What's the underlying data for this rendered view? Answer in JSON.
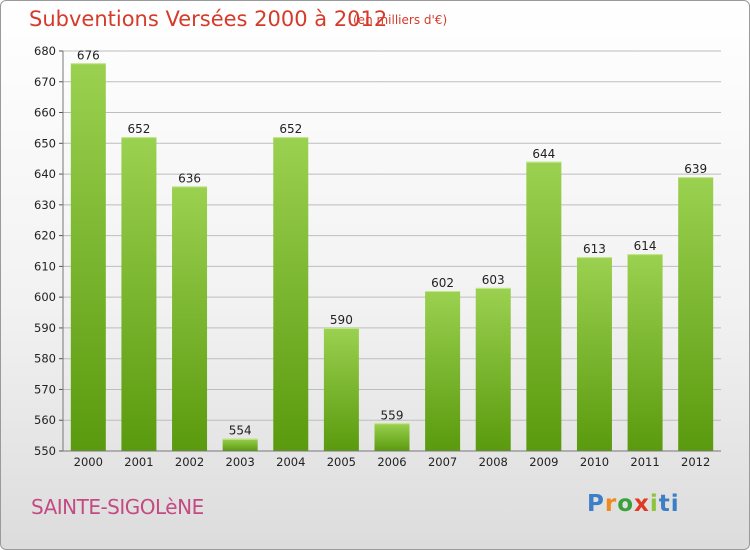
{
  "header": {
    "title": "Subventions Versées 2000 à 2012",
    "subtitle": "(en milliers d'€)"
  },
  "footer": {
    "commune": "SAINTE-SIGOLèNE",
    "brand": "Proxiti"
  },
  "chart_data": {
    "type": "bar",
    "categories": [
      "2000",
      "2001",
      "2002",
      "2003",
      "2004",
      "2005",
      "2006",
      "2007",
      "2008",
      "2009",
      "2010",
      "2011",
      "2012"
    ],
    "values": [
      676,
      652,
      636,
      554,
      652,
      590,
      559,
      602,
      603,
      644,
      613,
      614,
      639
    ],
    "title": "Subventions Versées 2000 à 2012",
    "subtitle": "(en milliers d'€)",
    "xlabel": "",
    "ylabel": "",
    "ylim": [
      550,
      680
    ],
    "yticks": [
      550,
      560,
      570,
      580,
      590,
      600,
      610,
      620,
      630,
      640,
      650,
      660,
      670,
      680
    ],
    "grid": true,
    "data_labels": true,
    "colors": {
      "bar_top": "#9bd150",
      "bar_bottom": "#5a9a0e",
      "grid": "#bdbdbd"
    }
  }
}
